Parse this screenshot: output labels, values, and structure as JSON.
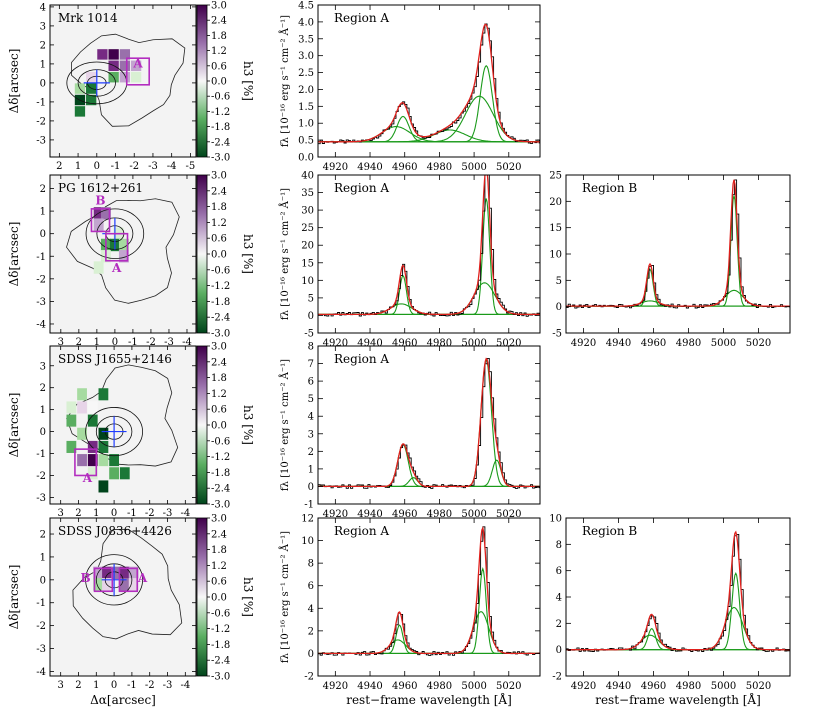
{
  "colorbar": {
    "label": "h3 [%]",
    "ticks": [
      "3.0",
      "2.4",
      "1.8",
      "1.2",
      "0.6",
      "0.0",
      "-0.6",
      "-1.2",
      "-1.8",
      "-2.4",
      "-3.0"
    ],
    "range": [
      -3.0,
      3.0
    ]
  },
  "maps": {
    "xlabel": "Δα[arcsec]",
    "ylabel": "Δδ[arcsec]"
  },
  "spectra_axis": {
    "xlabel": "rest−frame wavelength [Å]",
    "ylabel": "fλ [10⁻¹⁶ erg s⁻¹ cm⁻² Å⁻¹]",
    "xticks": [
      "4920",
      "4940",
      "4960",
      "4980",
      "5000",
      "5020"
    ],
    "xlim": [
      4910,
      5038
    ]
  },
  "chart_data": [
    {
      "type": "heatmap",
      "id": "map-mrk1014",
      "title": "Mrk 1014",
      "xlim": [
        2.5,
        -5.3
      ],
      "ylim": [
        -3.9,
        4.1
      ],
      "xticks": [
        "2",
        "1",
        "0",
        "-1",
        "-2",
        "-3",
        "-4",
        "-5"
      ],
      "yticks": [
        "4",
        "3",
        "2",
        "1",
        "0",
        "-1",
        "-2",
        "-3"
      ],
      "region_labels": [
        {
          "text": "A",
          "x": -2.2,
          "y": 0.8
        }
      ],
      "regions": [
        {
          "x": -2.2,
          "y": 0.6,
          "w": 1.2,
          "h": 1.4
        }
      ],
      "pixels": [
        {
          "x": -0.3,
          "y": 1.5,
          "v": 2.4
        },
        {
          "x": -0.9,
          "y": 1.5,
          "v": 3.0
        },
        {
          "x": -1.5,
          "y": 1.5,
          "v": 2.0
        },
        {
          "x": -0.9,
          "y": 0.9,
          "v": 2.6
        },
        {
          "x": -1.5,
          "y": 0.9,
          "v": 1.8
        },
        {
          "x": -2.1,
          "y": 0.9,
          "v": 1.2
        },
        {
          "x": 0.3,
          "y": 0.3,
          "v": 0.6
        },
        {
          "x": -1.5,
          "y": 0.3,
          "v": 1.2
        },
        {
          "x": -2.1,
          "y": 0.3,
          "v": -0.6
        },
        {
          "x": -0.9,
          "y": 0.3,
          "v": -1.8
        },
        {
          "x": 0.9,
          "y": -0.3,
          "v": -1.2
        },
        {
          "x": 0.3,
          "y": -0.3,
          "v": -2.4
        },
        {
          "x": 0.9,
          "y": -0.9,
          "v": -3.0
        },
        {
          "x": 0.3,
          "y": -0.9,
          "v": -2.4
        },
        {
          "x": 0.9,
          "y": -1.5,
          "v": -2.4
        }
      ]
    },
    {
      "type": "heatmap",
      "id": "map-pg1612",
      "title": "PG 1612+261",
      "xlim": [
        3.6,
        -4.5
      ],
      "ylim": [
        -4.4,
        2.6
      ],
      "xticks": [
        "3",
        "2",
        "1",
        "0",
        "-1",
        "-2",
        "-3",
        "-4"
      ],
      "yticks": [
        "2",
        "1",
        "0",
        "-1",
        "-2",
        "-3",
        "-4"
      ],
      "region_labels": [
        {
          "text": "B",
          "x": 0.8,
          "y": 1.3
        },
        {
          "text": "A",
          "x": -0.1,
          "y": -1.7
        }
      ],
      "regions": [
        {
          "x": 0.8,
          "y": 0.6,
          "w": 1.0,
          "h": 1.0
        },
        {
          "x": -0.1,
          "y": -0.6,
          "w": 1.2,
          "h": 1.2
        }
      ],
      "pixels": [
        {
          "x": 0.9,
          "y": 0.9,
          "v": 2.4
        },
        {
          "x": 0.5,
          "y": 0.9,
          "v": 1.8
        },
        {
          "x": 0.9,
          "y": 0.4,
          "v": 1.2
        },
        {
          "x": -0.2,
          "y": 0.0,
          "v": -0.6
        },
        {
          "x": 0.5,
          "y": -0.5,
          "v": -1.8
        },
        {
          "x": 0.0,
          "y": -0.5,
          "v": -2.4
        },
        {
          "x": -0.5,
          "y": -0.5,
          "v": -1.2
        },
        {
          "x": 0.5,
          "y": -1.0,
          "v": -0.6
        },
        {
          "x": -0.5,
          "y": -1.0,
          "v": 1.2
        },
        {
          "x": 0.9,
          "y": -1.5,
          "v": -0.6
        }
      ]
    },
    {
      "type": "heatmap",
      "id": "map-sdssj1655",
      "title": "SDSS J1655+2146",
      "xlim": [
        3.6,
        -4.6
      ],
      "ylim": [
        -3.3,
        3.9
      ],
      "xticks": [
        "3",
        "2",
        "1",
        "0",
        "-1",
        "-2",
        "-3",
        "-4"
      ],
      "yticks": [
        "3",
        "2",
        "1",
        "0",
        "-1",
        "-2",
        "-3"
      ],
      "region_labels": [
        {
          "text": "A",
          "x": 1.5,
          "y": -2.3
        }
      ],
      "regions": [
        {
          "x": 1.6,
          "y": -1.4,
          "w": 1.2,
          "h": 1.2
        }
      ],
      "pixels": [
        {
          "x": 1.8,
          "y": 1.7,
          "v": -1.2
        },
        {
          "x": 0.6,
          "y": 1.7,
          "v": -2.4
        },
        {
          "x": 2.4,
          "y": 1.1,
          "v": -0.6
        },
        {
          "x": 1.8,
          "y": 1.1,
          "v": 0.6
        },
        {
          "x": 1.2,
          "y": 1.1,
          "v": 0.0
        },
        {
          "x": 2.4,
          "y": 0.5,
          "v": -1.8
        },
        {
          "x": 1.2,
          "y": 0.5,
          "v": -2.4
        },
        {
          "x": 1.8,
          "y": -0.1,
          "v": -1.2
        },
        {
          "x": 0.6,
          "y": -0.1,
          "v": -3.0
        },
        {
          "x": 2.4,
          "y": -0.7,
          "v": -1.8
        },
        {
          "x": 1.2,
          "y": -0.7,
          "v": 2.4
        },
        {
          "x": 0.6,
          "y": -0.7,
          "v": -2.4
        },
        {
          "x": 1.8,
          "y": -1.3,
          "v": 1.8
        },
        {
          "x": 1.2,
          "y": -1.3,
          "v": 3.0
        },
        {
          "x": 0.6,
          "y": -1.3,
          "v": -1.2
        },
        {
          "x": 0.0,
          "y": -1.3,
          "v": -2.4
        },
        {
          "x": 1.2,
          "y": -1.9,
          "v": -0.6
        },
        {
          "x": 0.0,
          "y": -1.9,
          "v": -1.8
        },
        {
          "x": 0.6,
          "y": -2.5,
          "v": -3.0
        },
        {
          "x": -0.6,
          "y": -1.9,
          "v": -2.4
        }
      ]
    },
    {
      "type": "heatmap",
      "id": "map-sdssj0836",
      "title": "SDSS J0836+4426",
      "xlim": [
        3.6,
        -4.6
      ],
      "ylim": [
        -4.2,
        2.7
      ],
      "xticks": [
        "3",
        "2",
        "1",
        "0",
        "-1",
        "-2",
        "-3",
        "-4"
      ],
      "yticks": [
        "2",
        "1",
        "0",
        "-1",
        "-2",
        "-3",
        "-4"
      ],
      "region_labels": [
        {
          "text": "B",
          "x": 1.6,
          "y": -0.1
        },
        {
          "text": "A",
          "x": -1.6,
          "y": -0.1
        }
      ],
      "regions": [
        {
          "x": 0.6,
          "y": 0.0,
          "w": 1.0,
          "h": 1.0
        },
        {
          "x": -0.8,
          "y": 0.0,
          "w": 1.0,
          "h": 1.0
        }
      ],
      "pixels": [
        {
          "x": 0.9,
          "y": 0.3,
          "v": 1.2
        },
        {
          "x": 0.4,
          "y": 0.3,
          "v": 2.4
        },
        {
          "x": -0.1,
          "y": 0.3,
          "v": 1.8
        },
        {
          "x": -0.6,
          "y": 0.3,
          "v": 2.4
        },
        {
          "x": -1.1,
          "y": 0.3,
          "v": 1.2
        },
        {
          "x": 0.9,
          "y": -0.2,
          "v": -1.2
        },
        {
          "x": 0.4,
          "y": -0.2,
          "v": 0.6
        },
        {
          "x": -0.6,
          "y": -0.2,
          "v": 2.0
        },
        {
          "x": -1.1,
          "y": -0.2,
          "v": 0.6
        }
      ]
    },
    {
      "type": "line",
      "id": "spec-mrk1014-a",
      "title": "Region A",
      "xlim": [
        4910,
        5038
      ],
      "ylim": [
        0.0,
        4.5
      ],
      "yticks": [
        "0.0",
        "0.5",
        "1.0",
        "1.5",
        "2.0",
        "2.5",
        "3.0",
        "3.5",
        "4.0",
        "4.5"
      ],
      "continuum": 0.45,
      "components": [
        {
          "center": 4959,
          "sigma": 3.5,
          "amp": 0.75
        },
        {
          "center": 5007,
          "sigma": 3.5,
          "amp": 2.25
        },
        {
          "center": 4955,
          "sigma": 8.0,
          "amp": 0.45
        },
        {
          "center": 5003,
          "sigma": 8.0,
          "amp": 1.35
        },
        {
          "center": 4986,
          "sigma": 9.0,
          "amp": 0.35
        }
      ],
      "fit_peak": 4.1
    },
    {
      "type": "line",
      "id": "spec-pg1612-a",
      "title": "Region A",
      "xlim": [
        4910,
        5038
      ],
      "ylim": [
        -5,
        40
      ],
      "yticks": [
        "-5",
        "0",
        "5",
        "10",
        "15",
        "20",
        "25",
        "30",
        "35",
        "40"
      ],
      "continuum": 0.3,
      "components": [
        {
          "center": 4959,
          "sigma": 2.0,
          "amp": 11.0
        },
        {
          "center": 5007,
          "sigma": 2.0,
          "amp": 33.0
        },
        {
          "center": 4958,
          "sigma": 6.0,
          "amp": 3.0
        },
        {
          "center": 5006,
          "sigma": 6.0,
          "amp": 9.0
        }
      ],
      "fit_peak": 37.0
    },
    {
      "type": "line",
      "id": "spec-pg1612-b",
      "title": "Region B",
      "xlim": [
        4910,
        5038
      ],
      "ylim": [
        -5,
        25
      ],
      "yticks": [
        "-5",
        "0",
        "5",
        "10",
        "15",
        "20",
        "25"
      ],
      "continuum": 0.1,
      "components": [
        {
          "center": 4958,
          "sigma": 1.8,
          "amp": 7.0
        },
        {
          "center": 5006,
          "sigma": 1.8,
          "amp": 21.0
        },
        {
          "center": 4958,
          "sigma": 5.0,
          "amp": 1.0
        },
        {
          "center": 5006,
          "sigma": 5.0,
          "amp": 3.0
        }
      ],
      "fit_peak": 24.0
    },
    {
      "type": "line",
      "id": "spec-sdssj1655-a",
      "title": "Region A",
      "xlim": [
        4910,
        5038
      ],
      "ylim": [
        -1,
        8
      ],
      "yticks": [
        "-1",
        "0",
        "1",
        "2",
        "3",
        "4",
        "5",
        "6",
        "7",
        "8"
      ],
      "continuum": 0.0,
      "components": [
        {
          "center": 4959,
          "sigma": 3.0,
          "amp": 2.4
        },
        {
          "center": 5007,
          "sigma": 3.0,
          "amp": 7.2
        },
        {
          "center": 4965,
          "sigma": 2.5,
          "amp": 0.5
        },
        {
          "center": 5013,
          "sigma": 2.5,
          "amp": 1.5
        }
      ],
      "fit_peak": 7.8
    },
    {
      "type": "line",
      "id": "spec-sdssj0836-a",
      "title": "Region A",
      "xlim": [
        4910,
        5038
      ],
      "ylim": [
        -2,
        12
      ],
      "yticks": [
        "-2",
        "0",
        "2",
        "4",
        "6",
        "8",
        "10",
        "12"
      ],
      "continuum": 0.0,
      "components": [
        {
          "center": 4957,
          "sigma": 2.0,
          "amp": 2.5
        },
        {
          "center": 5005,
          "sigma": 2.0,
          "amp": 7.5
        },
        {
          "center": 4956,
          "sigma": 4.5,
          "amp": 1.2
        },
        {
          "center": 5004,
          "sigma": 4.5,
          "amp": 3.7
        }
      ],
      "fit_peak": 11.3
    },
    {
      "type": "line",
      "id": "spec-sdssj0836-b",
      "title": "Region B",
      "xlim": [
        4910,
        5038
      ],
      "ylim": [
        -2,
        10
      ],
      "yticks": [
        "-2",
        "0",
        "2",
        "4",
        "6",
        "8",
        "10"
      ],
      "continuum": 0.0,
      "components": [
        {
          "center": 4959,
          "sigma": 2.2,
          "amp": 1.6
        },
        {
          "center": 5007,
          "sigma": 2.2,
          "amp": 5.8
        },
        {
          "center": 4958,
          "sigma": 5.0,
          "amp": 1.1
        },
        {
          "center": 5006,
          "sigma": 5.0,
          "amp": 3.2
        }
      ],
      "fit_peak": 9.2
    }
  ]
}
